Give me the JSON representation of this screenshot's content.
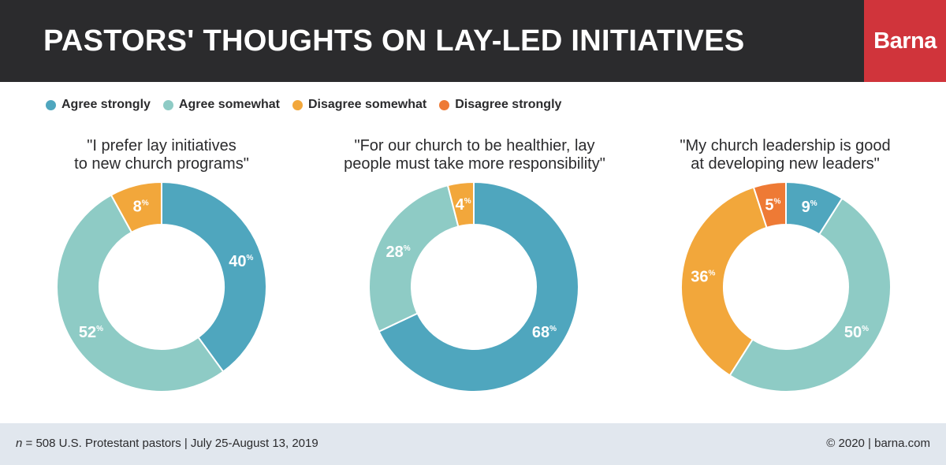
{
  "header": {
    "title": "PASTORS' THOUGHTS ON LAY-LED INITIATIVES",
    "brand": "Barna"
  },
  "legend": [
    {
      "label": "Agree strongly",
      "color": "#4fa6be"
    },
    {
      "label": "Agree somewhat",
      "color": "#8ecbc5"
    },
    {
      "label": "Disagree somewhat",
      "color": "#f2a73b"
    },
    {
      "label": "Disagree strongly",
      "color": "#ee7a35"
    }
  ],
  "footer": {
    "sample_n": "n",
    "sample_rest": " = 508 U.S. Protestant pastors | July 25-August 13, 2019",
    "copyright": "© 2020 | barna.com"
  },
  "chart_data": [
    {
      "type": "pie",
      "title": "\"I prefer lay initiatives to new church programs\"",
      "title_lines": [
        "\"I prefer lay initiatives",
        "to new church programs\""
      ],
      "categories": [
        "Agree strongly",
        "Agree somewhat",
        "Disagree somewhat",
        "Disagree strongly"
      ],
      "values": [
        40,
        52,
        8,
        0
      ],
      "unit": "%"
    },
    {
      "type": "pie",
      "title": "\"For our church to be healthier, lay people must take more responsibility\"",
      "title_lines": [
        "\"For our church to be healthier, lay",
        "people must take more responsibility\""
      ],
      "categories": [
        "Agree strongly",
        "Agree somewhat",
        "Disagree somewhat",
        "Disagree strongly"
      ],
      "values": [
        68,
        28,
        4,
        0
      ],
      "unit": "%"
    },
    {
      "type": "pie",
      "title": "\"My church leadership is good at developing new leaders\"",
      "title_lines": [
        "\"My church leadership is good",
        "at developing new leaders\""
      ],
      "categories": [
        "Agree strongly",
        "Agree somewhat",
        "Disagree somewhat",
        "Disagree strongly"
      ],
      "values": [
        9,
        50,
        36,
        5
      ],
      "unit": "%"
    }
  ]
}
